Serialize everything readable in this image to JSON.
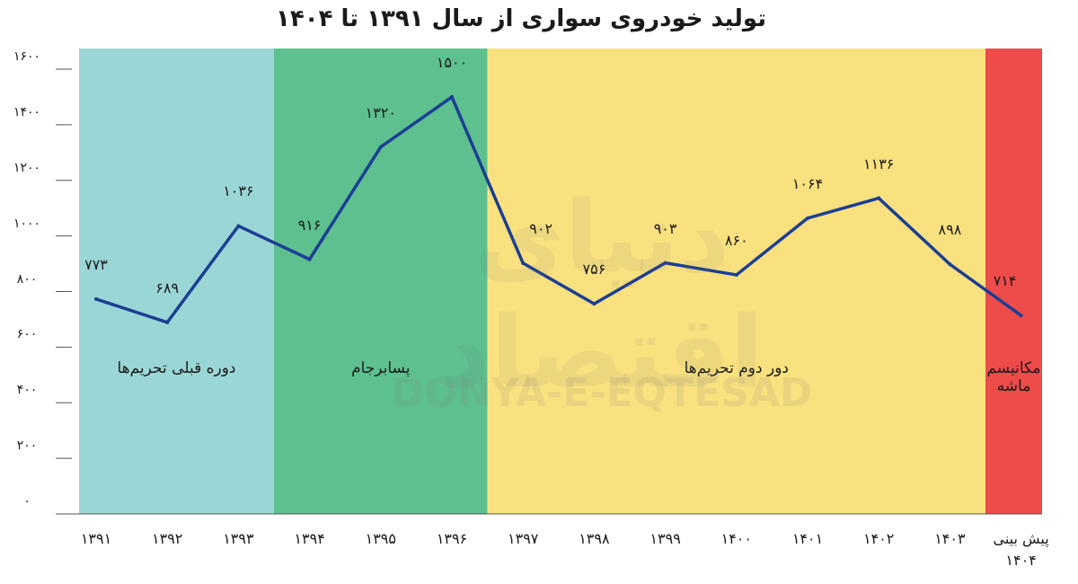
{
  "chart_data": {
    "type": "line",
    "title": "تولید خودروی سواری از سال ۱۳۹۱ تا ۱۴۰۴",
    "categories": [
      "۱۳۹۱",
      "۱۳۹۲",
      "۱۳۹۳",
      "۱۳۹۴",
      "۱۳۹۵",
      "۱۳۹۶",
      "۱۳۹۷",
      "۱۳۹۸",
      "۱۳۹۹",
      "۱۴۰۰",
      "۱۴۰۱",
      "۱۴۰۲",
      "۱۴۰۳",
      "پیش بینی ۱۴۰۴"
    ],
    "series": [
      {
        "color": "#1c3f94",
        "values": [
          773,
          689,
          1036,
          916,
          1320,
          1500,
          902,
          756,
          903,
          860,
          1064,
          1136,
          898,
          714
        ],
        "value_labels": [
          "۷۷۳",
          "۶۸۹",
          "۱۰۳۶",
          "۹۱۶",
          "۱۳۲۰",
          "۱۵۰۰",
          "۹۰۲",
          "۷۵۶",
          "۹۰۳",
          "۸۶۰",
          "۱۰۶۴",
          "۱۱۳۶",
          "۸۹۸",
          "۷۱۴"
        ]
      }
    ],
    "ylim": [
      0,
      1600
    ],
    "yticks": [
      {
        "value": 0,
        "label": "۰"
      },
      {
        "value": 200,
        "label": "۲۰۰"
      },
      {
        "value": 400,
        "label": "۴۰۰"
      },
      {
        "value": 600,
        "label": "۶۰۰"
      },
      {
        "value": 800,
        "label": "۸۰۰"
      },
      {
        "value": 1000,
        "label": "۱۰۰۰"
      },
      {
        "value": 1200,
        "label": "۱۲۰۰"
      },
      {
        "value": 1400,
        "label": "۱۴۰۰"
      },
      {
        "value": 1600,
        "label": "۱۶۰۰"
      }
    ],
    "regions": [
      {
        "label": "دوره قبلی تحریم‌ها",
        "color": "#9ad6d5",
        "from": "۱۳۹۱",
        "to": "۱۳۹۳"
      },
      {
        "label": "پسابرجام",
        "color": "#5dc08e",
        "from": "۱۳۹۴",
        "to": "۱۳۹۶"
      },
      {
        "label": "دور دوم تحریم‌ها",
        "color": "#fae17f",
        "from": "۱۳۹۷",
        "to": "۱۴۰۳"
      },
      {
        "label": "مکانیسم ماشه",
        "color": "#ee4b4b",
        "from": "پیش بینی ۱۴۰۴",
        "to": "پیش بینی ۱۴۰۴"
      }
    ],
    "watermarks": [
      "DONYA-E-EQTESAD",
      "دنیای اقتصاد"
    ]
  }
}
